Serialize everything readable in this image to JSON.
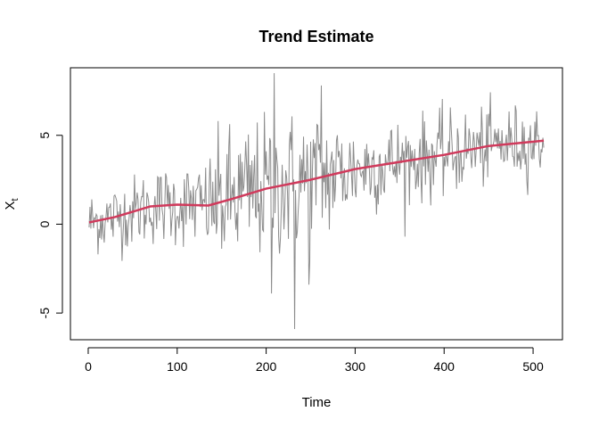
{
  "chart_data": {
    "type": "line",
    "title": "Trend Estimate",
    "xlabel": "Time",
    "ylabel_main": "X",
    "ylabel_sub": "t",
    "xlim": [
      1,
      512
    ],
    "ylim": [
      -6,
      9
    ],
    "xticks": [
      0,
      100,
      200,
      300,
      400,
      500
    ],
    "yticks": [
      -5,
      0,
      5
    ],
    "xtick_labels": [
      "0",
      "100",
      "200",
      "300",
      "400",
      "500"
    ],
    "ytick_labels": [
      "-5",
      "0",
      "5"
    ],
    "grid": false,
    "legend": "none",
    "series": [
      {
        "role": "observed",
        "color": "#8c8c8c",
        "n": 512,
        "trend_anchors": [
          [
            1,
            0.1
          ],
          [
            30,
            0.4
          ],
          [
            70,
            1.0
          ],
          [
            100,
            1.1
          ],
          [
            135,
            1.05
          ],
          [
            160,
            1.4
          ],
          [
            200,
            2.0
          ],
          [
            250,
            2.5
          ],
          [
            300,
            3.1
          ],
          [
            350,
            3.5
          ],
          [
            400,
            3.9
          ],
          [
            450,
            4.4
          ],
          [
            512,
            4.7
          ]
        ],
        "noise_sd": [
          [
            1,
            0.9
          ],
          [
            130,
            1.2
          ],
          [
            150,
            2.0
          ],
          [
            260,
            2.0
          ],
          [
            300,
            1.3
          ],
          [
            512,
            1.0
          ]
        ],
        "extremes": [
          [
            206,
            -3.9
          ],
          [
            209,
            8.5
          ],
          [
            232,
            -5.9
          ],
          [
            248,
            -3.4
          ],
          [
            262,
            7.8
          ]
        ]
      },
      {
        "role": "trend",
        "color": "#d03a5c",
        "x": [
          1,
          30,
          70,
          100,
          135,
          160,
          200,
          250,
          300,
          350,
          400,
          450,
          512
        ],
        "y": [
          0.1,
          0.4,
          1.0,
          1.1,
          1.05,
          1.4,
          2.0,
          2.5,
          3.1,
          3.5,
          3.9,
          4.4,
          4.7
        ]
      }
    ]
  }
}
